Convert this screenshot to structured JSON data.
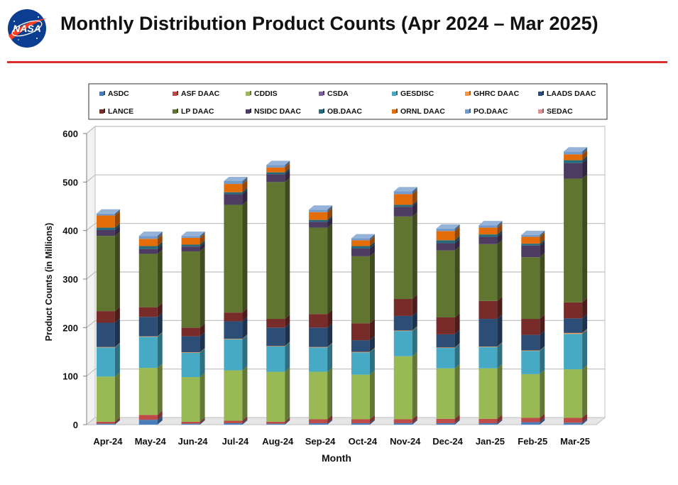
{
  "header": {
    "title": "Monthly Distribution Product Counts (Apr 2024 – Mar 2025)",
    "logo_text": "NASA"
  },
  "colors": {
    "title_rule": "#d9302e",
    "logo_blue": "#0b3d91",
    "logo_red": "#fc3d21"
  },
  "chart_data": {
    "type": "bar",
    "stacked": true,
    "title": "",
    "xlabel": "Month",
    "ylabel": "Product Counts (in Millions)",
    "ylim": [
      0,
      600
    ],
    "yticks": [
      0,
      100,
      200,
      300,
      400,
      500,
      600
    ],
    "grid": true,
    "legend_position": "top",
    "categories": [
      "Apr-24",
      "May-24",
      "Jun-24",
      "Jul-24",
      "Aug-24",
      "Sep-24",
      "Oct-24",
      "Nov-24",
      "Dec-24",
      "Jan-25",
      "Feb-25",
      "Mar-25"
    ],
    "series": [
      {
        "name": "ASDC",
        "color": "#4a7ebb",
        "values": [
          2,
          10,
          2,
          3,
          2,
          3,
          3,
          3,
          3,
          3,
          5,
          4
        ]
      },
      {
        "name": "ASF DAAC",
        "color": "#be4b48",
        "values": [
          4,
          10,
          4,
          5,
          4,
          8,
          8,
          8,
          9,
          9,
          9,
          10
        ]
      },
      {
        "name": "CDDIS",
        "color": "#98b954",
        "values": [
          93,
          97,
          92,
          104,
          103,
          98,
          92,
          130,
          104,
          104,
          90,
          100
        ]
      },
      {
        "name": "CSDA",
        "color": "#7d60a0",
        "values": [
          0,
          0,
          0,
          0,
          0,
          0,
          0,
          0,
          0,
          0,
          0,
          0
        ]
      },
      {
        "name": "GESDISC",
        "color": "#46aac5",
        "values": [
          60,
          64,
          50,
          64,
          52,
          50,
          46,
          52,
          42,
          44,
          48,
          73
        ]
      },
      {
        "name": "GHRC DAAC",
        "color": "#f69545",
        "values": [
          1,
          1,
          1,
          1,
          1,
          1,
          1,
          1,
          1,
          1,
          1,
          2
        ]
      },
      {
        "name": "LAADS DAAC",
        "color": "#2c4d75",
        "values": [
          50,
          40,
          33,
          36,
          38,
          40,
          24,
          30,
          27,
          57,
          32,
          30
        ]
      },
      {
        "name": "LANCE",
        "color": "#772c2a",
        "values": [
          24,
          20,
          18,
          18,
          18,
          28,
          35,
          35,
          35,
          37,
          33,
          33
        ]
      },
      {
        "name": "LP DAAC",
        "color": "#5f7530",
        "values": [
          155,
          110,
          157,
          222,
          282,
          178,
          138,
          170,
          138,
          117,
          127,
          255
        ]
      },
      {
        "name": "NSIDC DAAC",
        "color": "#4d3b62",
        "values": [
          12,
          10,
          10,
          22,
          16,
          12,
          16,
          20,
          15,
          15,
          24,
          32
        ]
      },
      {
        "name": "OB.DAAC",
        "color": "#276a7c",
        "values": [
          5,
          6,
          4,
          4,
          4,
          4,
          5,
          4,
          6,
          5,
          4,
          6
        ]
      },
      {
        "name": "ORNL DAAC",
        "color": "#e46d0a",
        "values": [
          25,
          15,
          14,
          17,
          10,
          16,
          12,
          22,
          19,
          14,
          14,
          12
        ]
      },
      {
        "name": "PO.DAAC",
        "color": "#729acb",
        "values": [
          4,
          6,
          4,
          6,
          5,
          5,
          4,
          6,
          5,
          5,
          4,
          6
        ]
      },
      {
        "name": "SEDAC",
        "color": "#d99694",
        "values": [
          0,
          0,
          0,
          0,
          0,
          0,
          0,
          0,
          0,
          0,
          0,
          0
        ]
      }
    ]
  }
}
